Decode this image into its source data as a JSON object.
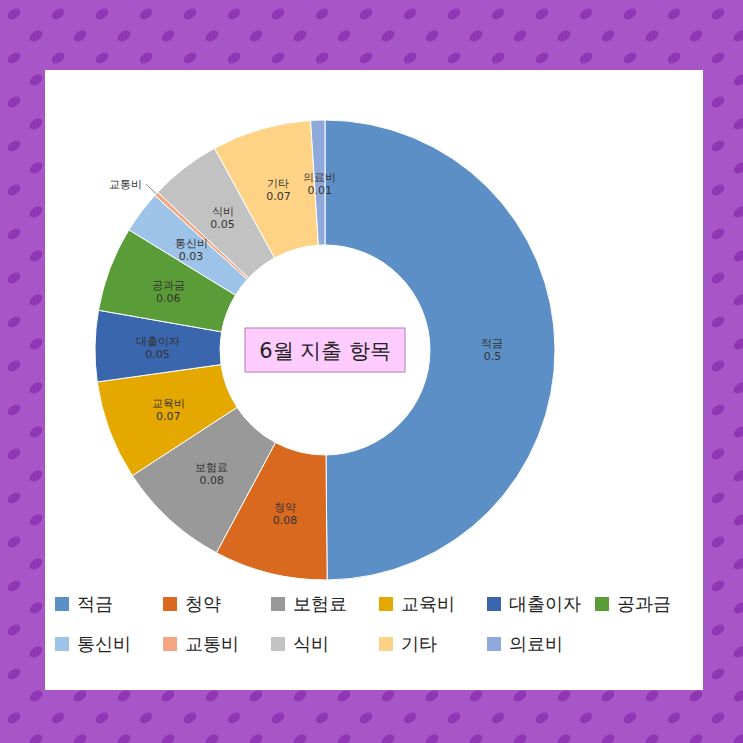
{
  "chart_data": {
    "type": "pie",
    "title": "6월 지출 항목",
    "categories": [
      "적금",
      "청약",
      "보험료",
      "교육비",
      "대출이자",
      "공과금",
      "통신비",
      "교통비",
      "식비",
      "기타",
      "의료비"
    ],
    "values": [
      0.5,
      0.08,
      0.08,
      0.07,
      0.05,
      0.06,
      0.03,
      0.003,
      0.05,
      0.07,
      0.01
    ],
    "value_labels": [
      "0.5",
      "0.08",
      "0.08",
      "0.07",
      "0.05",
      "0.06",
      "0.03",
      null,
      "0.05",
      "0.07",
      "0.01"
    ],
    "colors": [
      "#5b8fc6",
      "#d9691f",
      "#999999",
      "#e5a800",
      "#3a66ad",
      "#5a9c37",
      "#9dc3e8",
      "#f4a582",
      "#c2c2c2",
      "#ffd385",
      "#8fa9da"
    ],
    "data_labels": true,
    "legend": "bottom"
  }
}
